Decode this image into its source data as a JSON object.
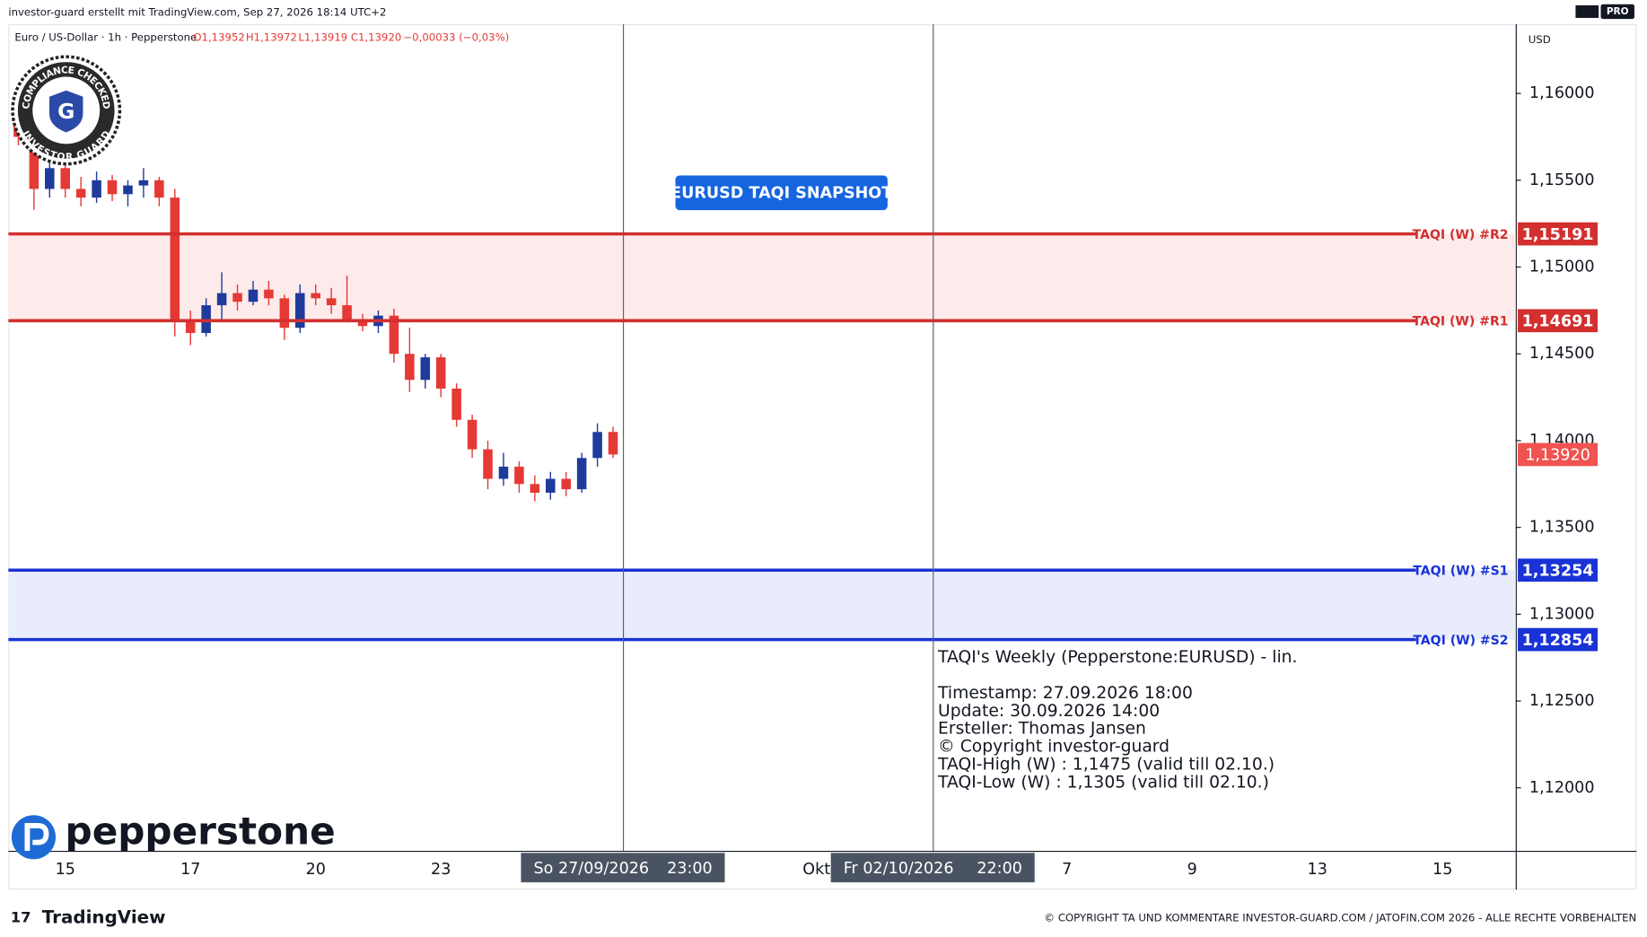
{
  "header": {
    "title": "investor-guard erstellt mit TradingView.com, Sep 27, 2026 18:14 UTC+2",
    "badge": "PRO"
  },
  "chart_data": {
    "type": "candlestick",
    "symbol_info": "Euro / US-Dollar · 1h · Pepperstone",
    "ohlc_legend": [
      "O1,13952",
      "H1,13972",
      "L1,13919",
      "C1,13920",
      "−0,00033 (−0,03%)"
    ],
    "currency": "USD",
    "up_color": "#1e3b9c",
    "down_color": "#e53935",
    "categories": [
      null,
      null,
      null,
      "15",
      null,
      null,
      null,
      null,
      null,
      null,
      null,
      "17",
      null,
      null,
      null,
      null,
      null,
      null,
      null,
      "20",
      null,
      null,
      null,
      null,
      null,
      null,
      null,
      "23",
      null,
      null,
      null,
      null,
      null,
      null,
      null,
      null,
      null,
      null,
      null,
      null,
      null,
      null,
      null,
      null,
      null,
      null,
      null,
      null,
      null,
      null,
      null,
      "Okt",
      null,
      null,
      null,
      null,
      null,
      null,
      null,
      null,
      null,
      null,
      null,
      null,
      null,
      null,
      null,
      "7",
      null,
      null,
      null,
      null,
      null,
      null,
      null,
      "9",
      null,
      null,
      null,
      null,
      null,
      null,
      null,
      "13",
      null,
      null,
      null,
      null,
      null,
      null,
      null,
      "15",
      null,
      null,
      null,
      null
    ],
    "open": [
      1.159,
      1.1575,
      1.1545,
      1.1557,
      1.1545,
      1.154,
      1.155,
      1.1542,
      1.1547,
      1.155,
      1.154,
      1.147,
      1.1462,
      1.1478,
      1.1485,
      1.148,
      1.1487,
      1.1482,
      1.1465,
      1.1485,
      1.1482,
      1.1478,
      1.147,
      1.1466,
      1.1472,
      1.145,
      1.1435,
      1.1448,
      1.143,
      1.1412,
      1.1395,
      1.1378,
      1.1385,
      1.1375,
      1.137,
      1.1378,
      1.1372,
      1.139,
      1.1405,
      null,
      null,
      null,
      null,
      null,
      null,
      null,
      null,
      null,
      null,
      null,
      null,
      null,
      null,
      null,
      null,
      null,
      null,
      null,
      null,
      null,
      null,
      null,
      null,
      null,
      null,
      null,
      null,
      null,
      null,
      null,
      null,
      null,
      null,
      null,
      null,
      null,
      null,
      null,
      null,
      null,
      null,
      null,
      null,
      null,
      null,
      null,
      null,
      null,
      null,
      null,
      null,
      null,
      null,
      null,
      null,
      null
    ],
    "high": [
      1.1596,
      1.158,
      1.1562,
      1.156,
      1.1552,
      1.1555,
      1.1553,
      1.155,
      1.1557,
      1.1552,
      1.1545,
      1.1475,
      1.1482,
      1.1497,
      1.149,
      1.1492,
      1.1492,
      1.1484,
      1.149,
      1.149,
      1.1488,
      1.1495,
      1.1473,
      1.1475,
      1.1476,
      1.1465,
      1.145,
      1.145,
      1.1433,
      1.1415,
      1.14,
      1.1393,
      1.1388,
      1.138,
      1.1382,
      1.1382,
      1.1393,
      1.141,
      1.1408,
      null,
      null,
      null,
      null,
      null,
      null,
      null,
      null,
      null,
      null,
      null,
      null,
      null,
      null,
      null,
      null,
      null,
      null,
      null,
      null,
      null,
      null,
      null,
      null,
      null,
      null,
      null,
      null,
      null,
      null,
      null,
      null,
      null,
      null,
      null,
      null,
      null,
      null,
      null,
      null,
      null,
      null,
      null,
      null,
      null,
      null,
      null,
      null,
      null,
      null,
      null,
      null,
      null,
      null,
      null,
      null,
      null
    ],
    "low": [
      1.157,
      1.1533,
      1.154,
      1.154,
      1.1535,
      1.1537,
      1.1538,
      1.1535,
      1.154,
      1.1535,
      1.146,
      1.1455,
      1.146,
      1.147,
      1.1475,
      1.1478,
      1.1478,
      1.1458,
      1.1462,
      1.1478,
      1.1473,
      1.1468,
      1.1463,
      1.1462,
      1.1445,
      1.1428,
      1.143,
      1.1425,
      1.1408,
      1.139,
      1.1372,
      1.1374,
      1.137,
      1.1365,
      1.1366,
      1.1368,
      1.137,
      1.1385,
      1.139,
      null,
      null,
      null,
      null,
      null,
      null,
      null,
      null,
      null,
      null,
      null,
      null,
      null,
      null,
      null,
      null,
      null,
      null,
      null,
      null,
      null,
      null,
      null,
      null,
      null,
      null,
      null,
      null,
      null,
      null,
      null,
      null,
      null,
      null,
      null,
      null,
      null,
      null,
      null,
      null,
      null,
      null,
      null,
      null,
      null,
      null,
      null,
      null,
      null,
      null,
      null,
      null,
      null,
      null,
      null,
      null,
      null
    ],
    "close": [
      1.1575,
      1.1545,
      1.1557,
      1.1545,
      1.154,
      1.155,
      1.1542,
      1.1547,
      1.155,
      1.154,
      1.147,
      1.1462,
      1.1478,
      1.1485,
      1.148,
      1.1487,
      1.1482,
      1.1465,
      1.1485,
      1.1482,
      1.1478,
      1.147,
      1.1466,
      1.1472,
      1.145,
      1.1435,
      1.1448,
      1.143,
      1.1412,
      1.1395,
      1.1378,
      1.1385,
      1.1375,
      1.137,
      1.1378,
      1.1372,
      1.139,
      1.1405,
      1.1392,
      null,
      null,
      null,
      null,
      null,
      null,
      null,
      null,
      null,
      null,
      null,
      null,
      null,
      null,
      null,
      null,
      null,
      null,
      null,
      null,
      null,
      null,
      null,
      null,
      null,
      null,
      null,
      null,
      null,
      null,
      null,
      null,
      null,
      null,
      null,
      null,
      null,
      null,
      null,
      null,
      null,
      null,
      null,
      null,
      null,
      null,
      null,
      null,
      null,
      null,
      null,
      null,
      null,
      null,
      null,
      null,
      null
    ],
    "ylim": [
      1.11637,
      1.16399
    ],
    "yticks": [
      {
        "value": 1.16,
        "label": "1,16000"
      },
      {
        "value": 1.155,
        "label": "1,15500"
      },
      {
        "value": 1.15,
        "label": "1,15000"
      },
      {
        "value": 1.145,
        "label": "1,14500"
      },
      {
        "value": 1.14,
        "label": "1,14000"
      },
      {
        "value": 1.135,
        "label": "1,13500"
      },
      {
        "value": 1.13,
        "label": "1,13000"
      },
      {
        "value": 1.125,
        "label": "1,12500"
      },
      {
        "value": 1.12,
        "label": "1,12000"
      }
    ],
    "grid": false,
    "zones": [
      {
        "color": "#fdeaea",
        "line_color": "#d32f2f",
        "levels": [
          {
            "name": "TAQI (W) #R2",
            "value": 1.15191,
            "value_label": "1,15191"
          },
          {
            "name": "TAQI (W) #R1",
            "value": 1.14691,
            "value_label": "1,14691"
          }
        ]
      },
      {
        "color": "#e9edfb",
        "line_color": "#1a33d6",
        "levels": [
          {
            "name": "TAQI (W) #S1",
            "value": 1.13254,
            "value_label": "1,13254"
          },
          {
            "name": "TAQI (W) #S2",
            "value": 1.12854,
            "value_label": "1,12854"
          }
        ]
      }
    ],
    "last_price": {
      "value": 1.1392,
      "label": "1,13920",
      "color": "#f05350"
    },
    "crosshair_labels": [
      {
        "date": "So 27/09/2026",
        "time": "23:00"
      },
      {
        "date": "Fr 02/10/2026",
        "time": "22:00"
      }
    ],
    "annotation": "EURUSD TAQI SNAPSHOT",
    "notes": [
      "TAQI's Weekly (Pepperstone:EURUSD) - lin.",
      "Timestamp: 27.09.2026 18:00",
      "Update: 30.09.2026 14:00",
      "Ersteller: Thomas Jansen",
      "© Copyright investor-guard",
      "TAQI-High (W) : 1,1475 (valid till 02.10.)",
      "TAQI-Low (W) : 1,1305 (valid till 02.10.)"
    ]
  },
  "seal": {
    "top": "COMPLIANCE CHECKED",
    "bottom": "INVESTOR GUARD",
    "letter": "G"
  },
  "broker_logo": "pepperstone",
  "footer": {
    "brand": "TradingView",
    "copyright": "© COPYRIGHT TA UND KOMMENTARE INVESTOR-GUARD.COM / JATOFIN.COM 2026 - ALLE RECHTE VORBEHALTEN"
  }
}
